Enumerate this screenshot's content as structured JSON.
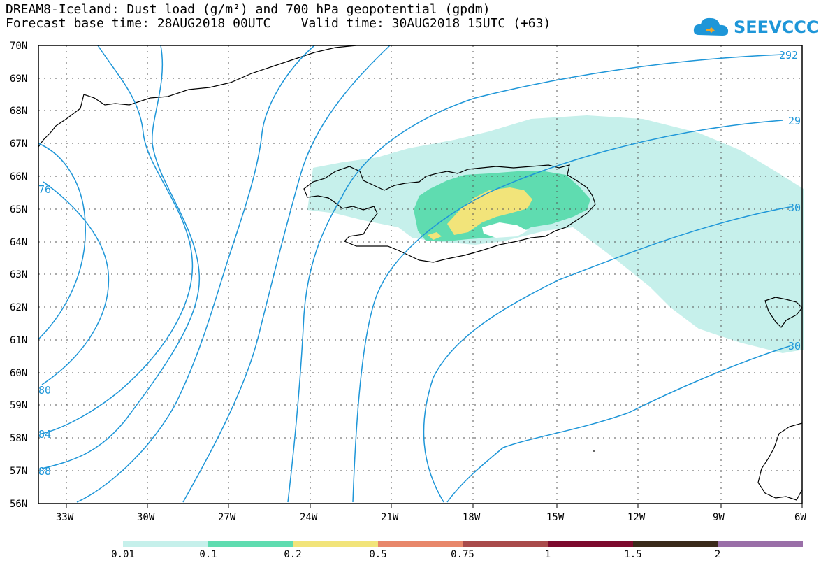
{
  "title_line1": "DREAM8-Iceland: Dust load (g/m²) and 700 hPa geopotential (gpdm)",
  "title_line2": "Forecast base time: 28AUG2018 00UTC    Valid time: 30AUG2018 15UTC (+63)",
  "logo_text": "SEEVCCC",
  "colors": {
    "contour": "#1e96d8",
    "coast": "#000000",
    "dust_01": "#c6f0eb",
    "dust_02": "#5fdcb0",
    "dust_05": "#f2e47a"
  },
  "map": {
    "lat_labels": [
      "70N",
      "69N",
      "68N",
      "67N",
      "66N",
      "65N",
      "64N",
      "63N",
      "62N",
      "61N",
      "60N",
      "59N",
      "58N",
      "57N",
      "56N"
    ],
    "lon_labels": [
      "33W",
      "30W",
      "27W",
      "24W",
      "21W",
      "18W",
      "15W",
      "12W",
      "9W",
      "6W"
    ],
    "contour_labels": [
      "292",
      "29",
      "30",
      "30",
      "76",
      "80",
      "84",
      "88"
    ]
  },
  "colorbar": {
    "ticks": [
      "0.01",
      "0.1",
      "0.2",
      "0.5",
      "0.75",
      "1",
      "1.5",
      "2"
    ],
    "colors": [
      "#c6f0eb",
      "#5fdcb0",
      "#f2e47a",
      "#e8876a",
      "#a94b4b",
      "#7d0a2d",
      "#3a2a1a",
      "#9a6fa8"
    ]
  }
}
